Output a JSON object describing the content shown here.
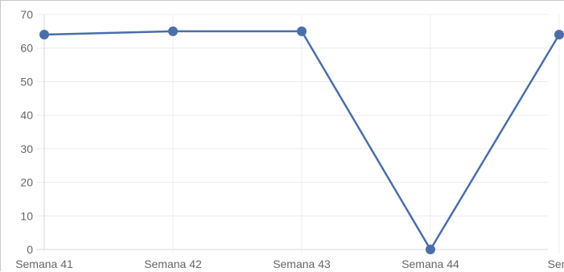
{
  "chart_data": {
    "type": "line",
    "categories": [
      "Semana 41",
      "Semana 42",
      "Semana 43",
      "Semana 44",
      "Sem"
    ],
    "series": [
      {
        "values": [
          64,
          65,
          65,
          0,
          64
        ],
        "color": "#4a6ea9"
      }
    ],
    "ylim": [
      0,
      70
    ],
    "yticks": [
      0,
      10,
      20,
      30,
      40,
      50,
      60,
      70
    ],
    "grid": true,
    "legend": "none",
    "title": "",
    "xlabel": "",
    "ylabel": ""
  }
}
